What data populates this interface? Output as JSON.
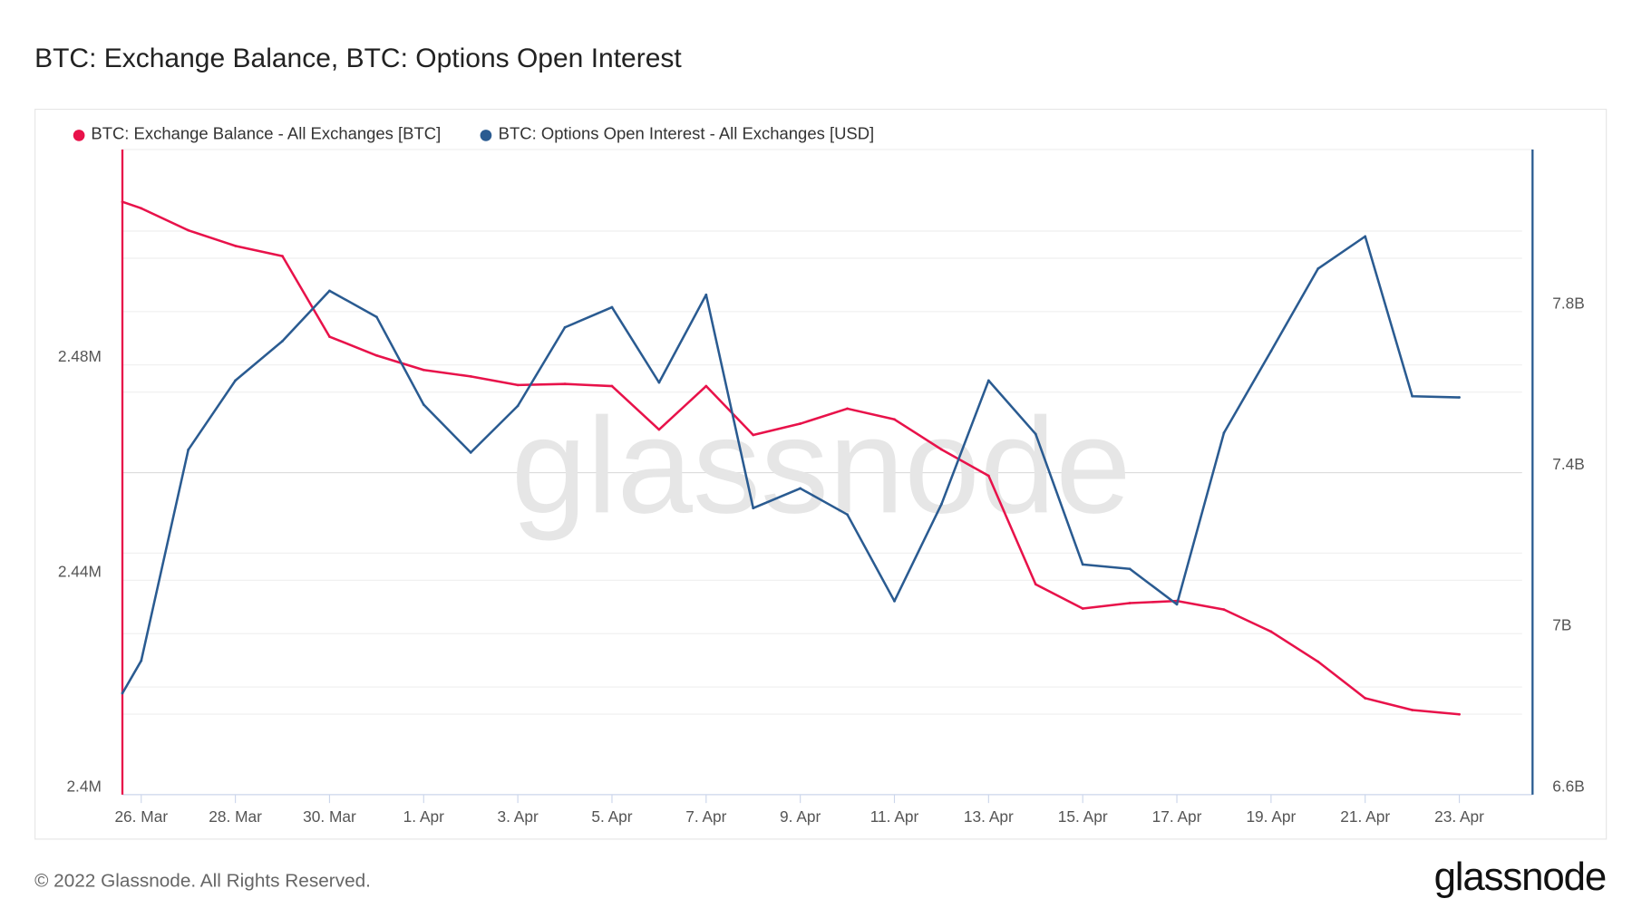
{
  "page": {
    "title": "BTC: Exchange Balance, BTC: Options Open Interest",
    "footer": "© 2022 Glassnode. All Rights Reserved.",
    "logo": "glassnode",
    "watermark": "glassnode"
  },
  "chart_data": {
    "type": "line",
    "title": "BTC: Exchange Balance, BTC: Options Open Interest",
    "legend_position": "top-left",
    "grid": true,
    "x_tick_labels": [
      "26. Mar",
      "28. Mar",
      "30. Mar",
      "1. Apr",
      "3. Apr",
      "5. Apr",
      "7. Apr",
      "9. Apr",
      "11. Apr",
      "13. Apr",
      "15. Apr",
      "17. Apr",
      "19. Apr",
      "21. Apr",
      "23. Apr"
    ],
    "x": [
      "2022-03-25",
      "2022-03-26",
      "2022-03-27",
      "2022-03-28",
      "2022-03-29",
      "2022-03-30",
      "2022-03-31",
      "2022-04-01",
      "2022-04-02",
      "2022-04-03",
      "2022-04-04",
      "2022-04-05",
      "2022-04-06",
      "2022-04-07",
      "2022-04-08",
      "2022-04-09",
      "2022-04-10",
      "2022-04-11",
      "2022-04-12",
      "2022-04-13",
      "2022-04-14",
      "2022-04-15",
      "2022-04-16",
      "2022-04-17",
      "2022-04-18",
      "2022-04-19",
      "2022-04-20",
      "2022-04-21",
      "2022-04-22",
      "2022-04-23"
    ],
    "y_left": {
      "ticks": [
        "2.4M",
        "2.44M",
        "2.48M"
      ],
      "range_millions": [
        2.4,
        2.52
      ],
      "color": "#e8124a"
    },
    "y_right": {
      "ticks": [
        "6.6B",
        "7B",
        "7.4B",
        "7.8B"
      ],
      "range_billions": [
        6.6,
        8.2
      ],
      "color": "#2a5b91"
    },
    "series": [
      {
        "name": "BTC: Exchange Balance - All Exchanges [BTC]",
        "axis": "left",
        "unit": "M",
        "color": "#e8124a",
        "values": [
          2.5088,
          2.5076,
          2.5035,
          2.5006,
          2.4987,
          2.4837,
          2.4802,
          2.4775,
          2.4763,
          2.4747,
          2.4749,
          2.4745,
          2.4664,
          2.4745,
          2.4654,
          2.4675,
          2.4703,
          2.4683,
          2.4627,
          2.4578,
          2.4376,
          2.4331,
          2.4341,
          2.4345,
          2.4329,
          2.4288,
          2.4232,
          2.4164,
          2.4142,
          2.4134
        ]
      },
      {
        "name": "BTC: Options Open Interest - All Exchanges [USD]",
        "axis": "right",
        "unit": "B",
        "color": "#2a5b91",
        "values": [
          6.831,
          6.912,
          7.436,
          7.608,
          7.706,
          7.831,
          7.766,
          7.548,
          7.429,
          7.545,
          7.74,
          7.79,
          7.603,
          7.821,
          7.291,
          7.34,
          7.275,
          7.06,
          7.301,
          7.608,
          7.475,
          7.151,
          7.14,
          7.052,
          7.478,
          7.681,
          7.886,
          7.966,
          7.569,
          7.566
        ]
      }
    ]
  }
}
